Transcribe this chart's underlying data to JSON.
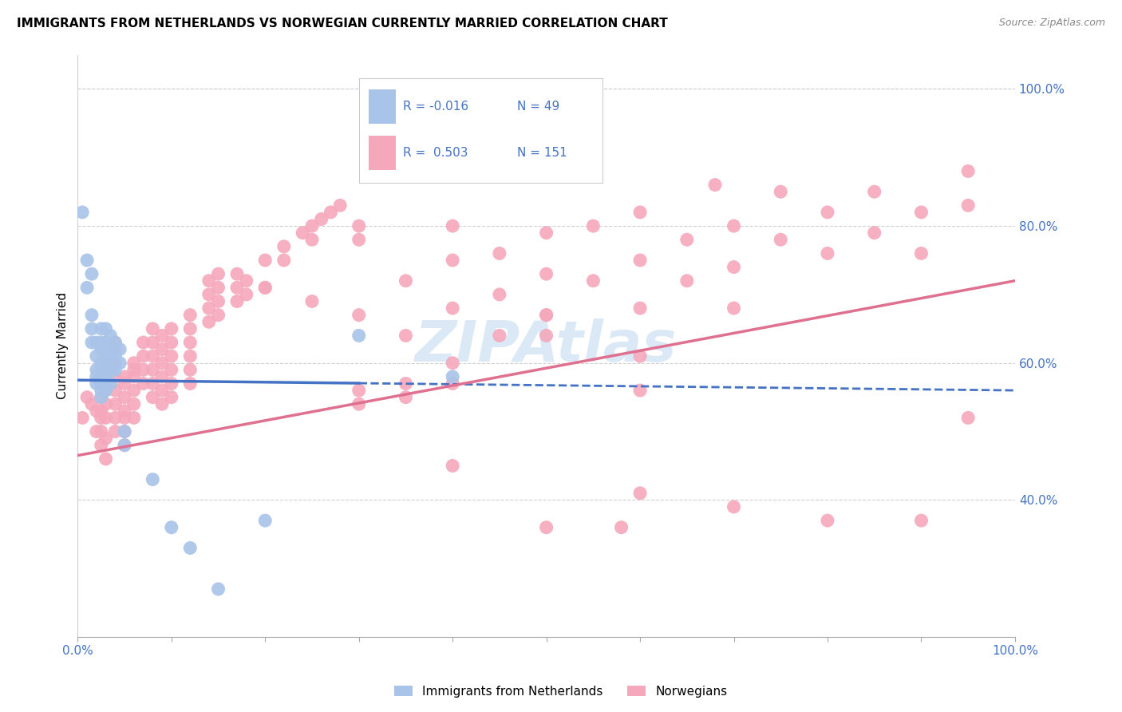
{
  "title": "IMMIGRANTS FROM NETHERLANDS VS NORWEGIAN CURRENTLY MARRIED CORRELATION CHART",
  "source": "Source: ZipAtlas.com",
  "ylabel": "Currently Married",
  "legend_label_blue": "Immigrants from Netherlands",
  "legend_label_pink": "Norwegians",
  "blue_color": "#a8c4e8",
  "pink_color": "#f5a8bc",
  "blue_line_color": "#4472c4",
  "pink_line_color": "#e07090",
  "blue_scatter": [
    [
      0.5,
      82
    ],
    [
      1.0,
      75
    ],
    [
      1.5,
      73
    ],
    [
      1.0,
      71
    ],
    [
      1.5,
      67
    ],
    [
      1.5,
      65
    ],
    [
      1.5,
      63
    ],
    [
      2.0,
      63
    ],
    [
      2.0,
      61
    ],
    [
      2.0,
      59
    ],
    [
      2.0,
      58
    ],
    [
      2.0,
      57
    ],
    [
      2.5,
      65
    ],
    [
      2.5,
      63
    ],
    [
      2.5,
      62
    ],
    [
      2.5,
      60
    ],
    [
      2.5,
      59
    ],
    [
      2.5,
      58
    ],
    [
      2.5,
      57
    ],
    [
      2.5,
      56
    ],
    [
      2.5,
      55
    ],
    [
      3.0,
      65
    ],
    [
      3.0,
      63
    ],
    [
      3.0,
      62
    ],
    [
      3.0,
      61
    ],
    [
      3.0,
      60
    ],
    [
      3.0,
      59
    ],
    [
      3.0,
      58
    ],
    [
      3.0,
      57
    ],
    [
      3.0,
      56
    ],
    [
      3.5,
      64
    ],
    [
      3.5,
      62
    ],
    [
      3.5,
      61
    ],
    [
      3.5,
      59
    ],
    [
      3.5,
      57
    ],
    [
      4.0,
      63
    ],
    [
      4.0,
      61
    ],
    [
      4.0,
      59
    ],
    [
      4.5,
      62
    ],
    [
      4.5,
      60
    ],
    [
      5.0,
      50
    ],
    [
      5.0,
      48
    ],
    [
      8.0,
      43
    ],
    [
      10.0,
      36
    ],
    [
      12.0,
      33
    ],
    [
      15.0,
      27
    ],
    [
      30.0,
      64
    ],
    [
      40.0,
      58
    ],
    [
      20.0,
      37
    ]
  ],
  "pink_scatter": [
    [
      0.5,
      52
    ],
    [
      1.0,
      55
    ],
    [
      1.5,
      54
    ],
    [
      2.0,
      53
    ],
    [
      2.0,
      50
    ],
    [
      2.5,
      58
    ],
    [
      2.5,
      57
    ],
    [
      2.5,
      55
    ],
    [
      2.5,
      53
    ],
    [
      2.5,
      52
    ],
    [
      2.5,
      50
    ],
    [
      2.5,
      48
    ],
    [
      3.0,
      60
    ],
    [
      3.0,
      59
    ],
    [
      3.0,
      58
    ],
    [
      3.0,
      56
    ],
    [
      3.0,
      54
    ],
    [
      3.0,
      52
    ],
    [
      3.0,
      49
    ],
    [
      3.0,
      46
    ],
    [
      4.0,
      63
    ],
    [
      4.0,
      62
    ],
    [
      4.0,
      60
    ],
    [
      4.0,
      58
    ],
    [
      4.0,
      56
    ],
    [
      4.0,
      54
    ],
    [
      4.0,
      52
    ],
    [
      4.0,
      50
    ],
    [
      5.0,
      58
    ],
    [
      5.0,
      57
    ],
    [
      5.0,
      55
    ],
    [
      5.0,
      53
    ],
    [
      5.0,
      52
    ],
    [
      5.0,
      50
    ],
    [
      5.0,
      48
    ],
    [
      6.0,
      60
    ],
    [
      6.0,
      59
    ],
    [
      6.0,
      58
    ],
    [
      6.0,
      56
    ],
    [
      6.0,
      54
    ],
    [
      6.0,
      52
    ],
    [
      7.0,
      63
    ],
    [
      7.0,
      61
    ],
    [
      7.0,
      59
    ],
    [
      7.0,
      57
    ],
    [
      8.0,
      65
    ],
    [
      8.0,
      63
    ],
    [
      8.0,
      61
    ],
    [
      8.0,
      59
    ],
    [
      8.0,
      57
    ],
    [
      8.0,
      55
    ],
    [
      9.0,
      64
    ],
    [
      9.0,
      62
    ],
    [
      9.0,
      60
    ],
    [
      9.0,
      58
    ],
    [
      9.0,
      56
    ],
    [
      9.0,
      54
    ],
    [
      10.0,
      65
    ],
    [
      10.0,
      63
    ],
    [
      10.0,
      61
    ],
    [
      10.0,
      59
    ],
    [
      10.0,
      57
    ],
    [
      10.0,
      55
    ],
    [
      12.0,
      67
    ],
    [
      12.0,
      65
    ],
    [
      12.0,
      63
    ],
    [
      12.0,
      61
    ],
    [
      12.0,
      59
    ],
    [
      12.0,
      57
    ],
    [
      14.0,
      72
    ],
    [
      14.0,
      70
    ],
    [
      14.0,
      68
    ],
    [
      14.0,
      66
    ],
    [
      15.0,
      73
    ],
    [
      15.0,
      71
    ],
    [
      15.0,
      69
    ],
    [
      15.0,
      67
    ],
    [
      17.0,
      73
    ],
    [
      17.0,
      71
    ],
    [
      17.0,
      69
    ],
    [
      18.0,
      72
    ],
    [
      18.0,
      70
    ],
    [
      20.0,
      75
    ],
    [
      20.0,
      71
    ],
    [
      22.0,
      77
    ],
    [
      22.0,
      75
    ],
    [
      24.0,
      79
    ],
    [
      25.0,
      80
    ],
    [
      25.0,
      78
    ],
    [
      26.0,
      81
    ],
    [
      27.0,
      82
    ],
    [
      28.0,
      83
    ],
    [
      30.0,
      80
    ],
    [
      30.0,
      78
    ],
    [
      30.0,
      67
    ],
    [
      30.0,
      54
    ],
    [
      30.0,
      56
    ],
    [
      35.0,
      72
    ],
    [
      35.0,
      64
    ],
    [
      35.0,
      57
    ],
    [
      35.0,
      55
    ],
    [
      40.0,
      80
    ],
    [
      40.0,
      75
    ],
    [
      40.0,
      68
    ],
    [
      40.0,
      60
    ],
    [
      40.0,
      57
    ],
    [
      40.0,
      45
    ],
    [
      45.0,
      76
    ],
    [
      45.0,
      70
    ],
    [
      45.0,
      64
    ],
    [
      50.0,
      79
    ],
    [
      50.0,
      73
    ],
    [
      50.0,
      67
    ],
    [
      50.0,
      64
    ],
    [
      50.0,
      36
    ],
    [
      55.0,
      80
    ],
    [
      55.0,
      72
    ],
    [
      58.0,
      36
    ],
    [
      60.0,
      82
    ],
    [
      60.0,
      75
    ],
    [
      60.0,
      68
    ],
    [
      60.0,
      61
    ],
    [
      60.0,
      56
    ],
    [
      60.0,
      41
    ],
    [
      65.0,
      78
    ],
    [
      65.0,
      72
    ],
    [
      70.0,
      80
    ],
    [
      70.0,
      74
    ],
    [
      70.0,
      68
    ],
    [
      70.0,
      39
    ],
    [
      75.0,
      85
    ],
    [
      75.0,
      78
    ],
    [
      80.0,
      82
    ],
    [
      80.0,
      76
    ],
    [
      80.0,
      37
    ],
    [
      85.0,
      85
    ],
    [
      85.0,
      79
    ],
    [
      90.0,
      82
    ],
    [
      90.0,
      76
    ],
    [
      90.0,
      37
    ],
    [
      20.0,
      71
    ],
    [
      25.0,
      69
    ],
    [
      95.0,
      52
    ],
    [
      95.0,
      88
    ],
    [
      95.0,
      83
    ],
    [
      50.0,
      67
    ],
    [
      68.0,
      86
    ]
  ],
  "blue_trend": [
    0.0,
    100.0,
    57.5,
    56.0
  ],
  "pink_trend": [
    0.0,
    100.0,
    46.5,
    72.0
  ],
  "xlim": [
    0.0,
    100.0
  ],
  "ylim": [
    20.0,
    105.0
  ],
  "yticks": [
    40.0,
    60.0,
    80.0,
    100.0
  ],
  "ytick_labels": [
    "40.0%",
    "60.0%",
    "80.0%",
    "100.0%"
  ],
  "background_color": "#ffffff",
  "grid_color": "#d0d0d0",
  "watermark_text": "ZIPAtlas",
  "watermark_color": "#b8d4f0",
  "title_fontsize": 11,
  "source_fontsize": 9,
  "tick_color": "#4472c4",
  "tick_fontsize": 11
}
